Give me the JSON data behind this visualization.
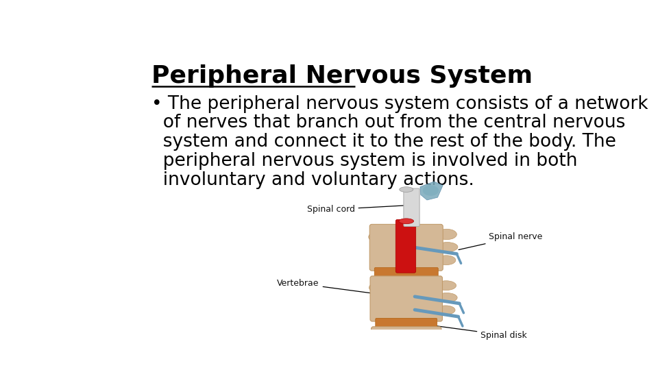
{
  "title": "Peripheral Nervous System",
  "bullet_lines": [
    "• The peripheral nervous system consists of a network",
    "  of nerves that branch out from the central nervous",
    "  system and connect it to the rest of the body. The",
    "  peripheral nervous system is involved in both",
    "  involuntary and voluntary actions."
  ],
  "background_color": "#ffffff",
  "title_color": "#000000",
  "text_color": "#000000",
  "title_fontsize": 26,
  "body_fontsize": 19,
  "spinal_cord_color": "#cc1111",
  "bone_color": "#d4b896",
  "bone_shadow": "#c09a6a",
  "nerve_color": "#6699bb",
  "cord_white": "#d8d8d8",
  "cord_grey": "#b0b0b0",
  "disk_color": "#c87830",
  "label_fontsize": 9
}
